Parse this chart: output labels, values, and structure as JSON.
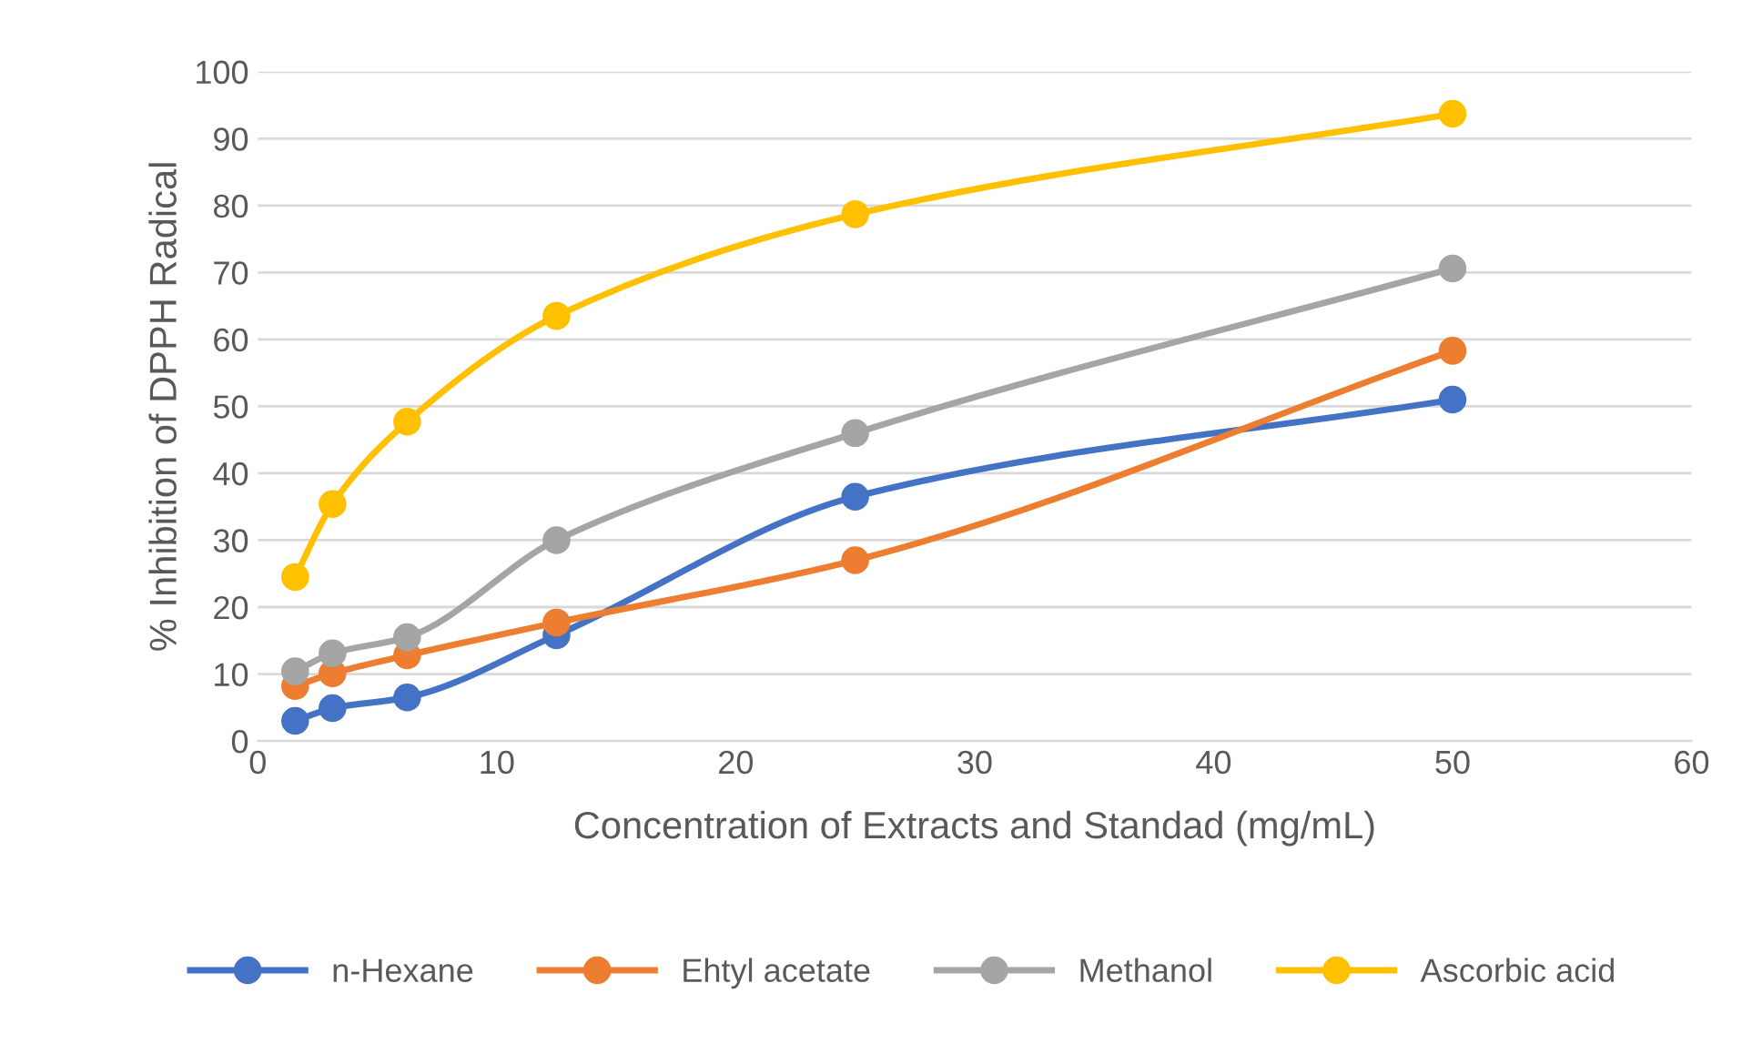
{
  "chart_data": {
    "type": "line",
    "xlabel": "Concentration of Extracts and Standad (mg/mL)",
    "ylabel": "% Inhibition of DPPH Radical",
    "x": [
      1.5625,
      3.125,
      6.25,
      12.5,
      25,
      50
    ],
    "series": [
      {
        "name": "n-Hexane",
        "color": "#4472c4",
        "values": [
          3.0,
          4.9,
          6.5,
          15.8,
          36.5,
          51
        ]
      },
      {
        "name": "Ehtyl acetate",
        "color": "#ed7d31",
        "values": [
          8.2,
          10.1,
          12.8,
          17.7,
          27,
          58.3
        ]
      },
      {
        "name": "Methanol",
        "color": "#a5a5a5",
        "values": [
          10.4,
          13.1,
          15.5,
          30,
          46,
          70.6
        ]
      },
      {
        "name": "Ascorbic acid",
        "color": "#ffc000",
        "values": [
          24.5,
          35.4,
          47.7,
          63.5,
          78.7,
          93.7
        ]
      }
    ],
    "xlim": [
      0,
      60
    ],
    "xticks": [
      0,
      10,
      20,
      30,
      40,
      50,
      60
    ],
    "ylim": [
      0,
      100
    ],
    "yticks": [
      0,
      10,
      20,
      30,
      40,
      50,
      60,
      70,
      80,
      90,
      100
    ],
    "grid": "y",
    "legend": "bottom",
    "marker": "circle",
    "line_style": "solid"
  }
}
